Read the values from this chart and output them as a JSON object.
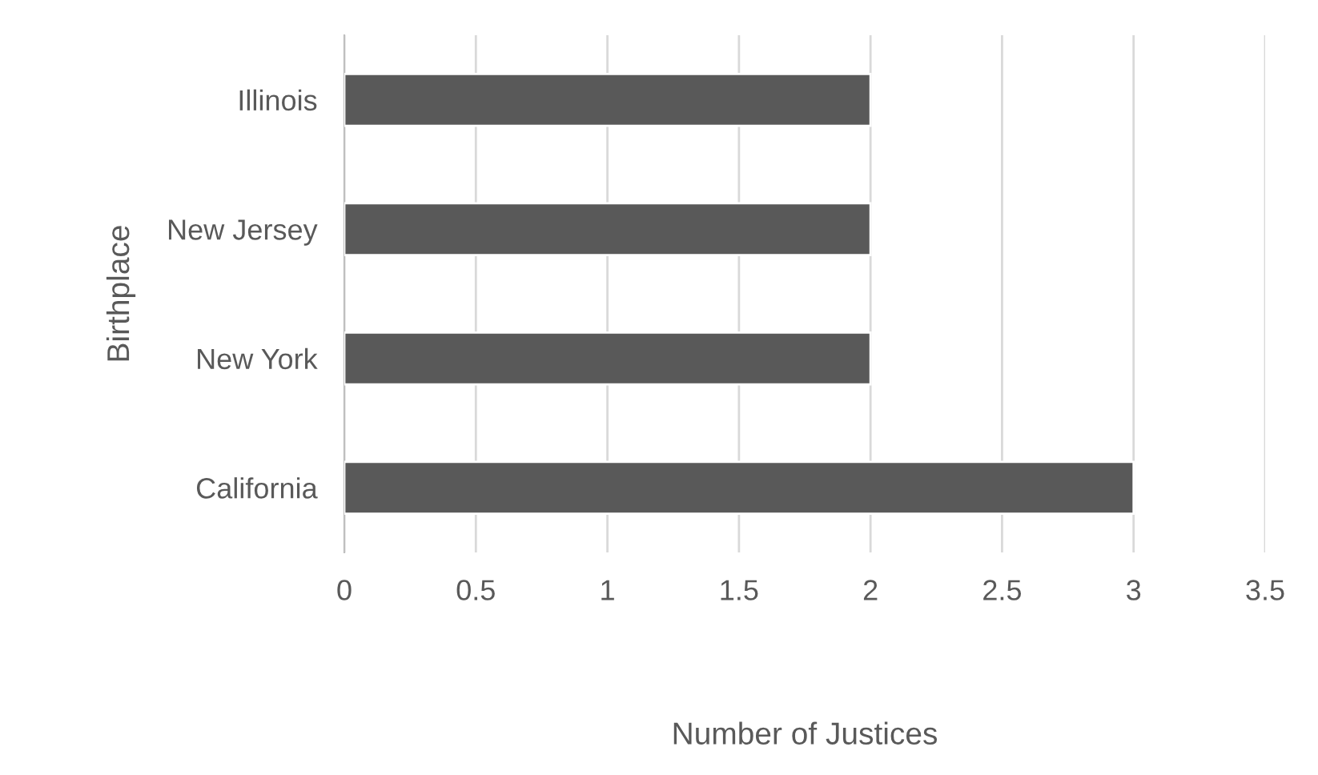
{
  "chart_data": {
    "type": "bar",
    "orientation": "horizontal",
    "xlabel": "Number of Justices",
    "ylabel": "Birthplace",
    "categories": [
      "Illinois",
      "New Jersey",
      "New York",
      "California"
    ],
    "values": [
      2,
      2,
      2,
      3
    ],
    "color": "#595959",
    "xlim": [
      0,
      3.5
    ],
    "xticks": [
      0,
      0.5,
      1,
      1.5,
      2,
      2.5,
      3,
      3.5
    ],
    "grid": "x"
  }
}
